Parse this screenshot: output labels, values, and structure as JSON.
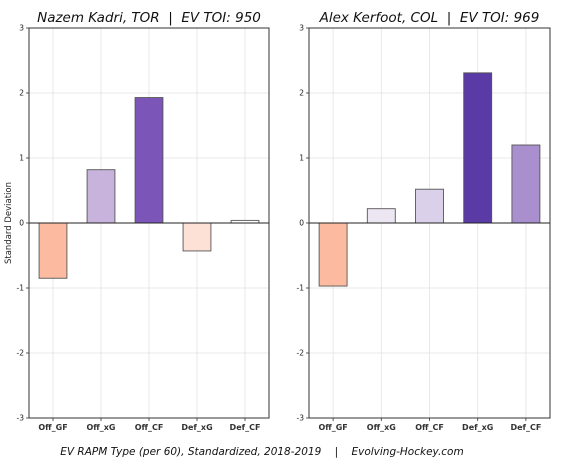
{
  "chart_data": [
    {
      "type": "bar",
      "title": "Nazem Kadri, TOR  |  EV TOI: 950",
      "ylabel": "Standard Deviation",
      "xlabel": "",
      "categories": [
        "Off_GF",
        "Off_xG",
        "Off_CF",
        "Def_xG",
        "Def_CF"
      ],
      "values": [
        -0.85,
        0.82,
        1.93,
        -0.43,
        0.04
      ],
      "colors": [
        "#fcbba1",
        "#c7b3dc",
        "#7c55b8",
        "#fde0d6",
        "#ffffff"
      ],
      "ylim": [
        -3,
        3
      ],
      "yticks": [
        "3",
        "2",
        "1",
        "0",
        "-1",
        "-2",
        "-3"
      ],
      "grid": true
    },
    {
      "type": "bar",
      "title": "Alex Kerfoot, COL  |  EV TOI: 969",
      "ylabel": "",
      "xlabel": "",
      "categories": [
        "Off_GF",
        "Off_xG",
        "Off_CF",
        "Def_xG",
        "Def_CF"
      ],
      "values": [
        -0.97,
        0.22,
        0.52,
        2.31,
        1.2
      ],
      "colors": [
        "#fcbba1",
        "#ece6f2",
        "#dad0e9",
        "#5a3ba6",
        "#a98fcd"
      ],
      "ylim": [
        -3,
        3
      ],
      "yticks": [
        "3",
        "2",
        "1",
        "0",
        "-1",
        "-2",
        "-3"
      ],
      "grid": true
    }
  ],
  "caption": "EV RAPM Type (per 60), Standardized, 2018-2019    |    Evolving-Hockey.com"
}
